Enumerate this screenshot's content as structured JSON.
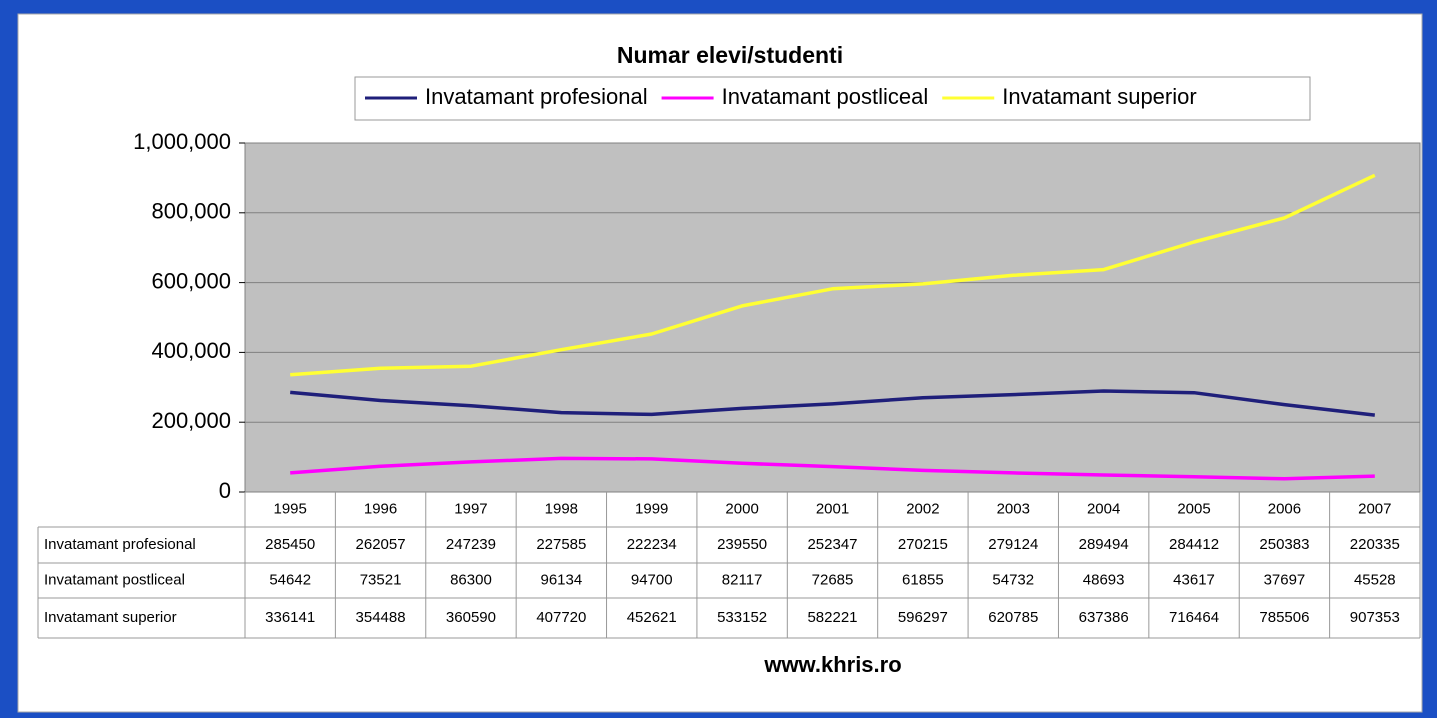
{
  "chart_data": {
    "type": "line",
    "title": "Numar elevi/studenti",
    "footer": "www.khris.ro",
    "categories": [
      "1995",
      "1996",
      "1997",
      "1998",
      "1999",
      "2000",
      "2001",
      "2002",
      "2003",
      "2004",
      "2005",
      "2006",
      "2007"
    ],
    "series": [
      {
        "name": "Invatamant profesional",
        "color": "#1f1f7a",
        "values": [
          285450,
          262057,
          247239,
          227585,
          222234,
          239550,
          252347,
          270215,
          279124,
          289494,
          284412,
          250383,
          220335
        ]
      },
      {
        "name": "Invatamant postliceal",
        "color": "#ff00ff",
        "values": [
          54642,
          73521,
          86300,
          96134,
          94700,
          82117,
          72685,
          61855,
          54732,
          48693,
          43617,
          37697,
          45528
        ]
      },
      {
        "name": "Invatamant superior",
        "color": "#ffff33",
        "values": [
          336141,
          354488,
          360590,
          407720,
          452621,
          533152,
          582221,
          596297,
          620785,
          637386,
          716464,
          785506,
          907353
        ]
      }
    ],
    "ylim": [
      0,
      1000000
    ],
    "yticks": [
      0,
      {
        "value": 200000,
        "label": "200,000"
      },
      {
        "value": 400000,
        "label": "400,000"
      },
      {
        "value": 600000,
        "label": "600,000"
      },
      {
        "value": 800000,
        "label": "800,000"
      },
      {
        "value": 1000000,
        "label": "1,000,000"
      }
    ],
    "grid": true,
    "legend": "top"
  }
}
